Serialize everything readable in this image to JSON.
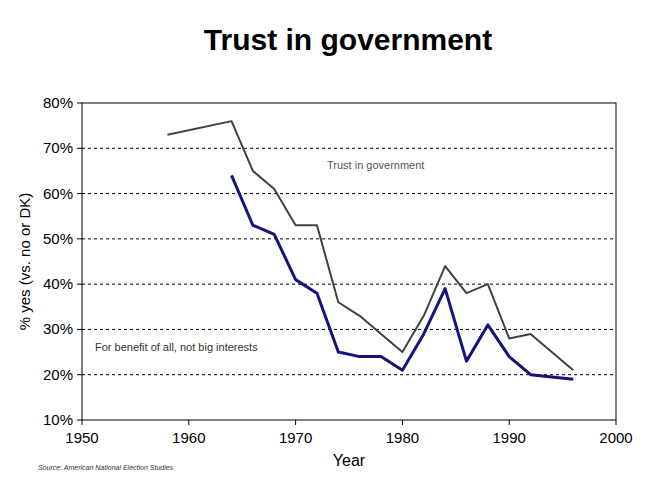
{
  "chart_data": {
    "type": "line",
    "title": "Trust in government",
    "x_label": "Year",
    "y_label": "% yes (vs. no or DK)",
    "source": "Source: American National Election Studies",
    "x": [
      1958,
      1964,
      1966,
      1968,
      1970,
      1972,
      1974,
      1976,
      1978,
      1980,
      1982,
      1984,
      1986,
      1988,
      1990,
      1992,
      1996
    ],
    "series": [
      {
        "name": "Trust in government",
        "color": "#404048",
        "values": [
          73,
          76,
          65,
          61,
          53,
          53,
          36,
          33,
          29,
          25,
          33,
          44,
          38,
          40,
          28,
          29,
          21
        ]
      },
      {
        "name": "For benefit of all, not big interests",
        "color": "#14147a",
        "values": [
          null,
          64,
          53,
          51,
          41,
          38,
          25,
          24,
          24,
          21,
          29,
          39,
          23,
          31,
          24,
          20,
          19
        ]
      }
    ],
    "xlim": [
      1950,
      2000
    ],
    "xticks": [
      1950,
      1960,
      1970,
      1980,
      1990,
      2000
    ],
    "ylim": [
      10,
      80
    ],
    "yticks": [
      {
        "value": 10,
        "label": "10%"
      },
      {
        "value": 20,
        "label": "20%"
      },
      {
        "value": 30,
        "label": "30%"
      },
      {
        "value": 40,
        "label": "40%"
      },
      {
        "value": 50,
        "label": "50%"
      },
      {
        "value": 60,
        "label": "60%"
      },
      {
        "value": 70,
        "label": "70%"
      },
      {
        "value": 80,
        "label": "80%"
      }
    ],
    "grid": true
  }
}
